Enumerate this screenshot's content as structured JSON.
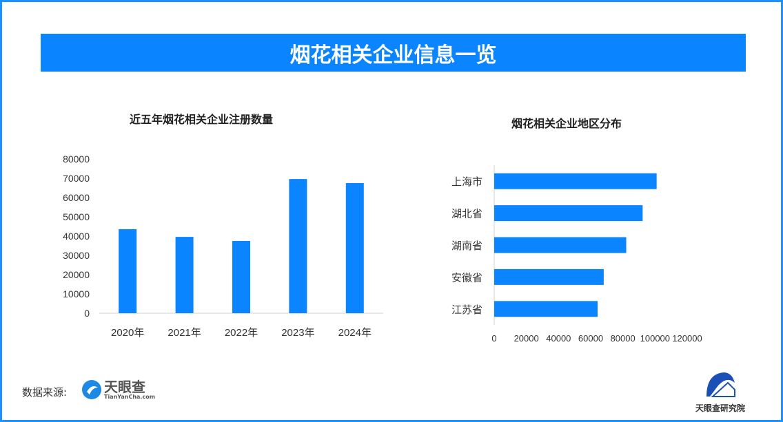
{
  "title": "烟花相关企业信息一览",
  "footer": {
    "source_label": "数据来源:",
    "logo_text": "天眼查",
    "logo_sub": "TianYanCha.com",
    "institute": "天眼查研究院"
  },
  "colors": {
    "bar": "#0a84ff",
    "banner": "#0a84ff",
    "border": "#1e90ff"
  },
  "chart_data": [
    {
      "type": "bar",
      "title": "近五年烟花相关企业注册数量",
      "categories": [
        "2020年",
        "2021年",
        "2022年",
        "2023年",
        "2024年"
      ],
      "values": [
        43600,
        39600,
        37500,
        69600,
        67500
      ],
      "ylim": [
        0,
        80000
      ],
      "yticks": [
        0,
        10000,
        20000,
        30000,
        40000,
        50000,
        60000,
        70000,
        80000
      ],
      "grid": false
    },
    {
      "type": "bar",
      "orientation": "horizontal",
      "title": "烟花相关企业地区分布",
      "categories": [
        "上海市",
        "湖北省",
        "湖南省",
        "安徽省",
        "江苏省"
      ],
      "values": [
        101000,
        92300,
        82100,
        68100,
        64300
      ],
      "xlim": [
        0,
        120000
      ],
      "xticks": [
        0,
        20000,
        40000,
        60000,
        80000,
        100000,
        120000
      ],
      "grid": false
    }
  ]
}
